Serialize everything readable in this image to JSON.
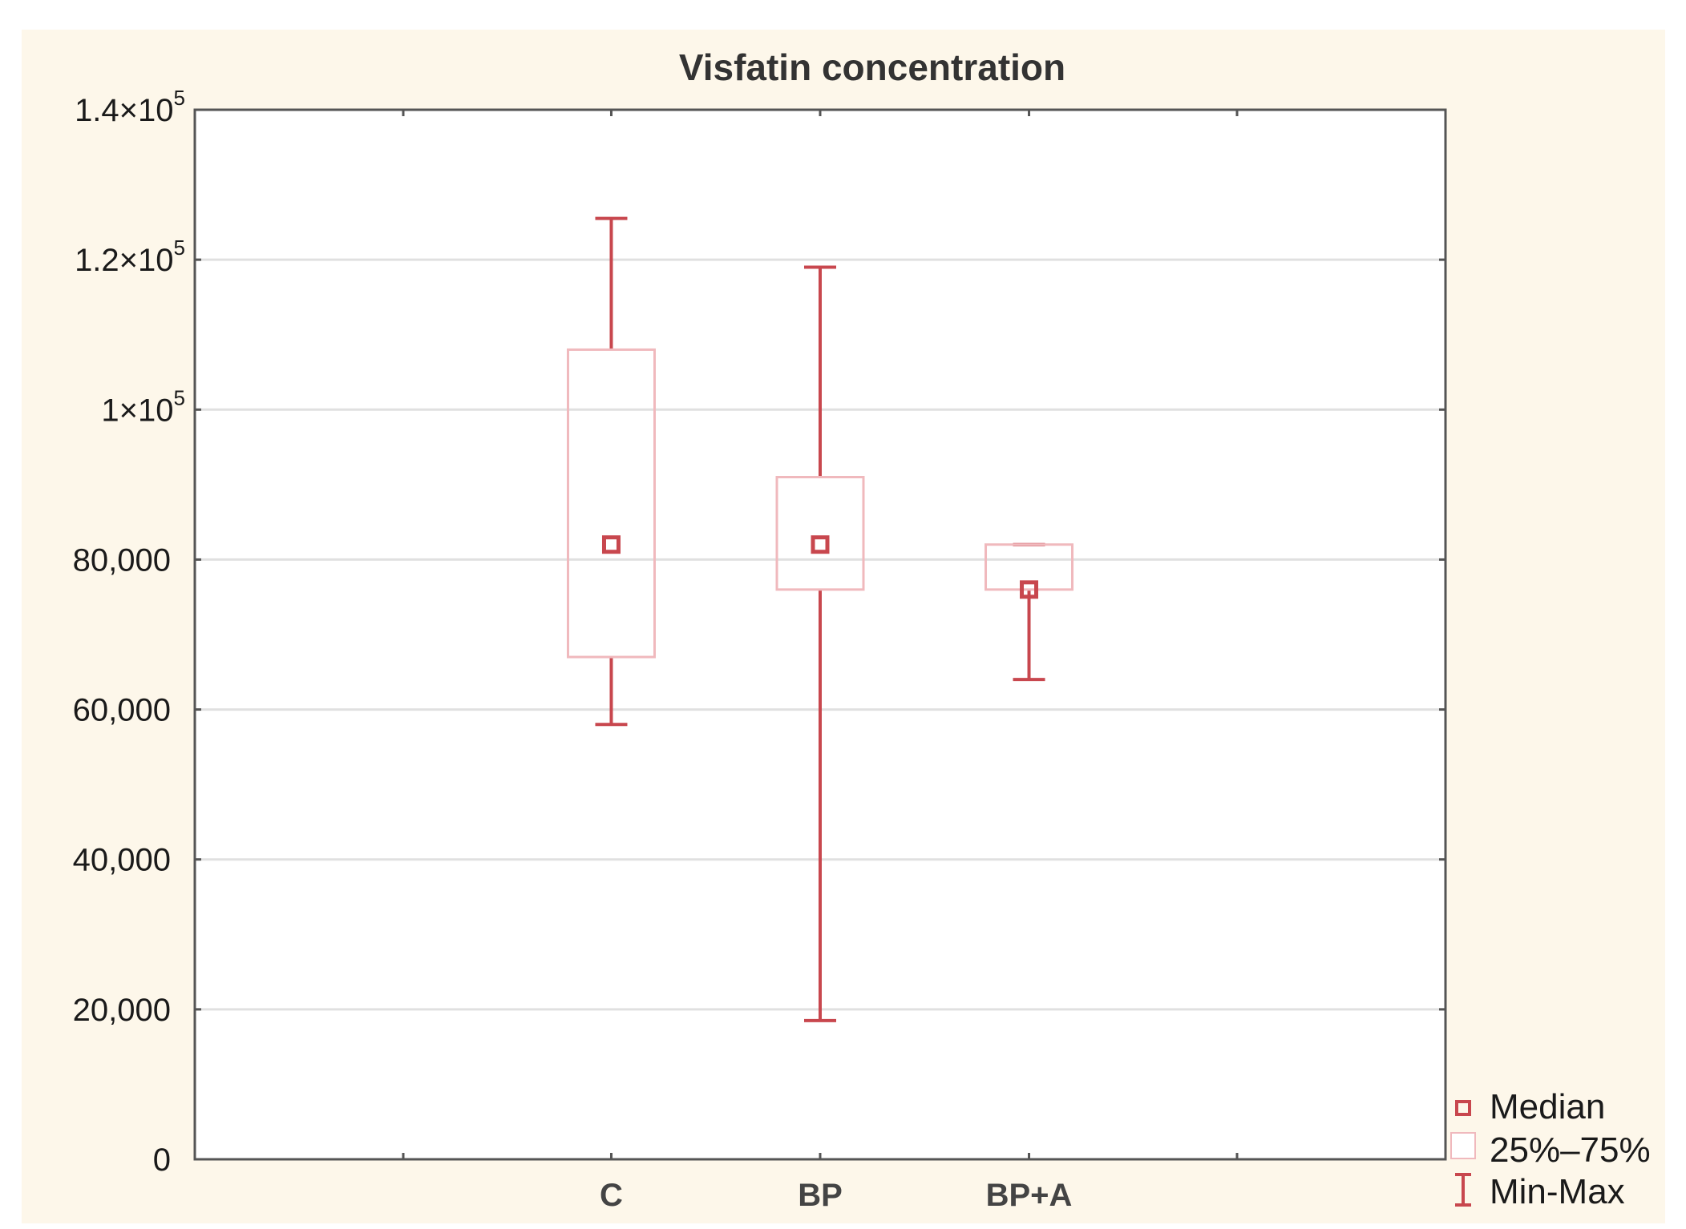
{
  "colors": {
    "page_background": "#ffffff",
    "chart_background": "#fdf7ea",
    "plot_background": "#ffffff",
    "axis": "#555555",
    "grid": "#e0e0e0",
    "whisker": "#c8474e",
    "median": "#c8474e",
    "box": "#f0b9bd"
  },
  "legend": {
    "median": "Median",
    "box": "25%–75%",
    "range": "Min-Max"
  },
  "chart_data": {
    "type": "boxplot",
    "title": "Visfatin concentration",
    "xlabel": "",
    "ylabel": "",
    "categories": [
      "C",
      "BP",
      "BP+A"
    ],
    "ylim": [
      0,
      140000
    ],
    "grid": true,
    "legend_position": "bottom-right",
    "y_ticks": [
      {
        "value": 0,
        "label": "0"
      },
      {
        "value": 20000,
        "label": "20,000"
      },
      {
        "value": 40000,
        "label": "40,000"
      },
      {
        "value": 60000,
        "label": "60,000"
      },
      {
        "value": 80000,
        "label": "80,000"
      },
      {
        "value": 100000,
        "label": "1×10",
        "exp": "5"
      },
      {
        "value": 120000,
        "label": "1.2×10",
        "exp": "5"
      },
      {
        "value": 140000,
        "label": "1.4×10",
        "exp": "5"
      }
    ],
    "series": [
      {
        "name": "C",
        "min": 58000,
        "q1": 67000,
        "median": 82000,
        "q3": 108000,
        "max": 125500
      },
      {
        "name": "BP",
        "min": 18500,
        "q1": 76000,
        "median": 82000,
        "q3": 91000,
        "max": 119000
      },
      {
        "name": "BP+A",
        "min": 64000,
        "q1": 76000,
        "median": 76000,
        "q3": 82000,
        "max": 82000
      }
    ]
  }
}
